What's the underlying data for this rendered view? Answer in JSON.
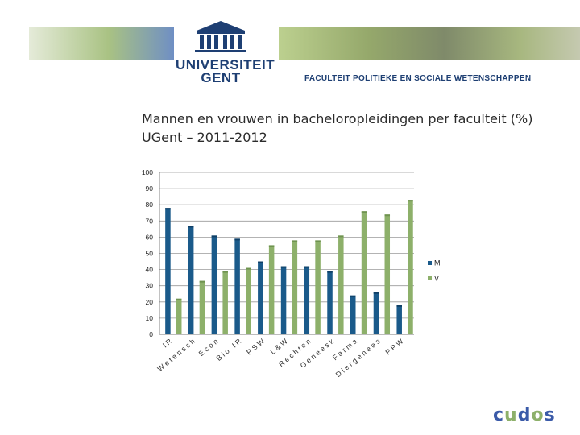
{
  "header": {
    "logo_text_line1": "UNIVERSITEIT",
    "logo_text_line2": "GENT",
    "faculty": "FACULTEIT POLITIEKE EN SOCIALE WETENSCHAPPEN",
    "colors": {
      "brand_blue": "#1e3f73",
      "banner_green": "#8fb06a",
      "banner_blue": "#5a78b5"
    }
  },
  "title": {
    "line1": "Mannen en vrouwen in bacheloropleidingen per faculteit (%)",
    "line2": "UGent – 2011-2012"
  },
  "chart_data": {
    "type": "bar",
    "categories": [
      "IR",
      "Wetensch",
      "Econ",
      "Bio IR",
      "PSW",
      "L&W",
      "Rechten",
      "Geneesk",
      "Farma",
      "Diergenees",
      "PPW"
    ],
    "series": [
      {
        "name": "M",
        "color": "#1a5a8a",
        "values": [
          78,
          67,
          61,
          59,
          45,
          42,
          42,
          39,
          24,
          26,
          18
        ]
      },
      {
        "name": "V",
        "color": "#8db06a",
        "values": [
          22,
          33,
          39,
          41,
          55,
          58,
          58,
          61,
          76,
          74,
          83
        ]
      }
    ],
    "yticks": [
      0,
      10,
      20,
      30,
      40,
      50,
      60,
      70,
      80,
      90,
      100
    ],
    "ylim": [
      0,
      100
    ],
    "grid": true,
    "legend_position": "right"
  },
  "footer": {
    "logo_text": "cudos"
  }
}
